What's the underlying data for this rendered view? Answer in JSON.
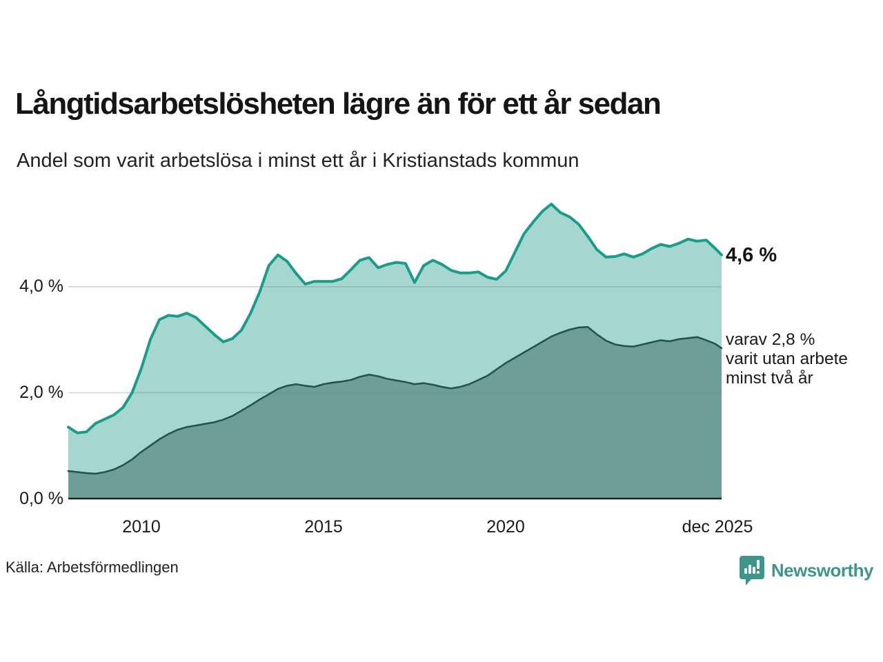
{
  "header": {
    "title": "Långtidsarbetslösheten lägre än för ett år sedan",
    "subtitle": "Andel som varit arbetslösa i minst ett år i Kristianstads kommun"
  },
  "annotations": {
    "latest_value": "4,6 %",
    "secondary_note": "varav 2,8 %\nvarit utan arbete\nminst två år"
  },
  "footer": {
    "source": "Källa: Arbetsförmedlingen",
    "brand": "Newsworthy",
    "brand_icon": "newsworthy-speech-bubble-bar-chart-icon",
    "brand_color": "#3f948b"
  },
  "chart_data": {
    "type": "area",
    "title": "Långtidsarbetslösheten lägre än för ett år sedan",
    "subtitle_as_ylabel": "Andel som varit arbetslösa i minst ett år i Kristianstads kommun",
    "grid": true,
    "grid_values": [
      2,
      4
    ],
    "ylim": [
      0,
      6
    ],
    "xlim": [
      2008,
      2025.92
    ],
    "legend_position": "right-annotations",
    "y_ticks": [
      {
        "v": 4,
        "label": "4,0 %"
      },
      {
        "v": 2,
        "label": "2,0 %"
      },
      {
        "v": 0,
        "label": "0,0 %"
      }
    ],
    "x_ticks": [
      {
        "t": 2010,
        "label": "2010"
      },
      {
        "t": 2015,
        "label": "2015"
      },
      {
        "t": 2020,
        "label": "2020"
      },
      {
        "t": 2025.92,
        "label": "dec 2025"
      }
    ],
    "x": [
      2008.0,
      2008.25,
      2008.5,
      2008.75,
      2009.0,
      2009.25,
      2009.5,
      2009.75,
      2010.0,
      2010.25,
      2010.5,
      2010.75,
      2011.0,
      2011.25,
      2011.5,
      2011.75,
      2012.0,
      2012.25,
      2012.5,
      2012.75,
      2013.0,
      2013.25,
      2013.5,
      2013.75,
      2014.0,
      2014.25,
      2014.5,
      2014.75,
      2015.0,
      2015.25,
      2015.5,
      2015.75,
      2016.0,
      2016.25,
      2016.5,
      2016.75,
      2017.0,
      2017.25,
      2017.5,
      2017.75,
      2018.0,
      2018.25,
      2018.5,
      2018.75,
      2019.0,
      2019.25,
      2019.5,
      2019.75,
      2020.0,
      2020.25,
      2020.5,
      2020.75,
      2021.0,
      2021.25,
      2021.5,
      2021.75,
      2022.0,
      2022.25,
      2022.5,
      2022.75,
      2023.0,
      2023.25,
      2023.5,
      2023.75,
      2024.0,
      2024.25,
      2024.5,
      2024.75,
      2025.0,
      2025.25,
      2025.5,
      2025.75,
      2025.92
    ],
    "series": [
      {
        "name": "Andel arbetslösa minst ett år",
        "color": "#1a9c8a",
        "fill": "#a5d6cf",
        "stroke_width": 4,
        "latest_label": "4,6 %",
        "values": [
          1.35,
          1.24,
          1.26,
          1.42,
          1.5,
          1.58,
          1.72,
          2.0,
          2.45,
          3.0,
          3.38,
          3.46,
          3.44,
          3.5,
          3.42,
          3.26,
          3.1,
          2.96,
          3.02,
          3.18,
          3.5,
          3.9,
          4.4,
          4.6,
          4.48,
          4.25,
          4.05,
          4.1,
          4.1,
          4.1,
          4.15,
          4.32,
          4.5,
          4.55,
          4.36,
          4.42,
          4.46,
          4.44,
          4.08,
          4.4,
          4.5,
          4.42,
          4.31,
          4.26,
          4.26,
          4.28,
          4.18,
          4.14,
          4.3,
          4.65,
          5.0,
          5.22,
          5.42,
          5.56,
          5.4,
          5.32,
          5.18,
          4.95,
          4.7,
          4.56,
          4.57,
          4.62,
          4.56,
          4.62,
          4.72,
          4.8,
          4.76,
          4.82,
          4.9,
          4.86,
          4.88,
          4.72,
          4.6
        ]
      },
      {
        "name": "varav utan arbete minst två år",
        "color": "#26534d",
        "fill": "#6f9e99",
        "stroke_width": 2.6,
        "latest_label": "2,8 %",
        "values": [
          0.52,
          0.5,
          0.48,
          0.47,
          0.5,
          0.55,
          0.63,
          0.74,
          0.88,
          1.0,
          1.12,
          1.22,
          1.3,
          1.35,
          1.38,
          1.41,
          1.44,
          1.49,
          1.56,
          1.66,
          1.76,
          1.87,
          1.97,
          2.07,
          2.13,
          2.16,
          2.13,
          2.11,
          2.16,
          2.19,
          2.21,
          2.24,
          2.3,
          2.34,
          2.31,
          2.26,
          2.23,
          2.2,
          2.16,
          2.18,
          2.15,
          2.11,
          2.08,
          2.11,
          2.16,
          2.24,
          2.32,
          2.44,
          2.56,
          2.66,
          2.76,
          2.86,
          2.96,
          3.06,
          3.13,
          3.19,
          3.23,
          3.24,
          3.1,
          2.98,
          2.91,
          2.88,
          2.87,
          2.91,
          2.95,
          2.99,
          2.97,
          3.01,
          3.03,
          3.05,
          2.99,
          2.92,
          2.84
        ]
      }
    ]
  }
}
